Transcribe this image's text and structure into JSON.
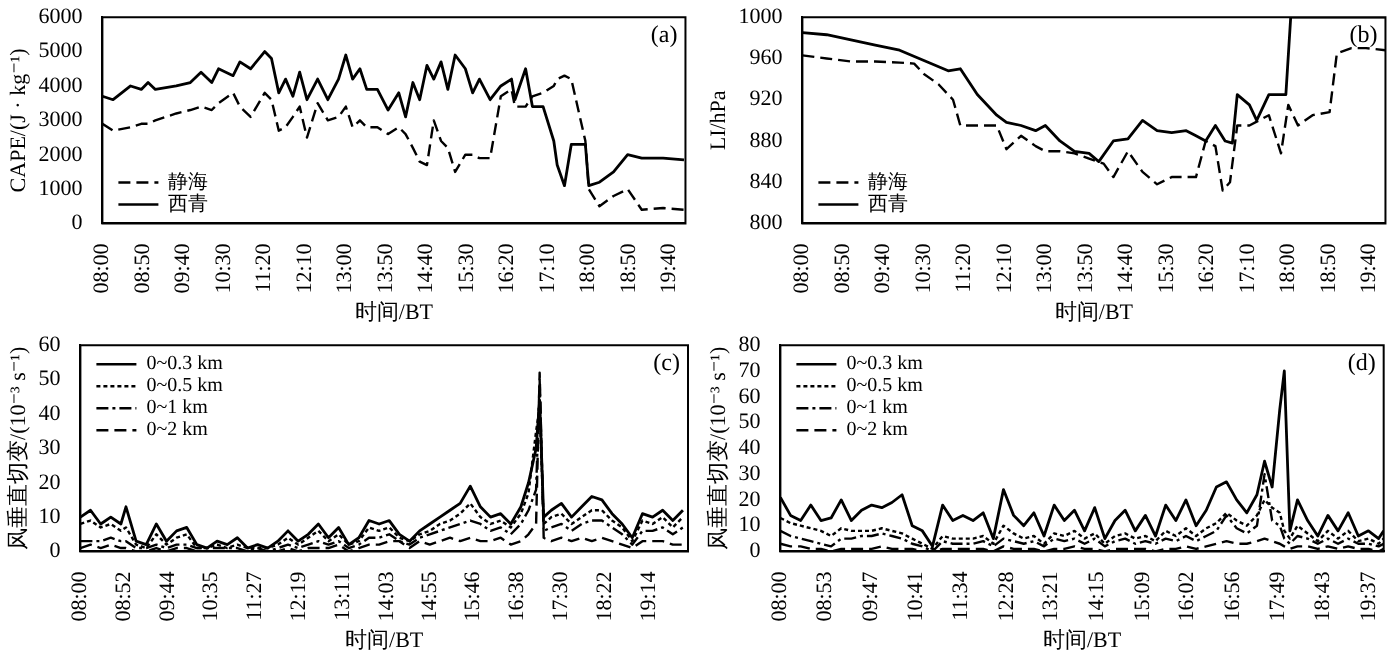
{
  "chart_data": [
    {
      "type": "line",
      "xlabel": "时间/BT",
      "ylabel": "CAPE/(J · kg⁻¹)",
      "annotations": [
        "(a)"
      ],
      "legend": "bottom left",
      "xlim": [
        8,
        20
      ],
      "ylim": [
        0,
        6000
      ],
      "yticks": [
        0,
        1000,
        2000,
        3000,
        4000,
        5000,
        6000
      ],
      "xticks": [
        {
          "value": 8,
          "label": "08:00"
        },
        {
          "value": 8.8333,
          "label": "08:50"
        },
        {
          "value": 9.6667,
          "label": "09:40"
        },
        {
          "value": 10.5,
          "label": "10:30"
        },
        {
          "value": 11.3333,
          "label": "11:20"
        },
        {
          "value": 12.1667,
          "label": "12:10"
        },
        {
          "value": 13,
          "label": "13:00"
        },
        {
          "value": 13.8333,
          "label": "13:50"
        },
        {
          "value": 14.6667,
          "label": "14:40"
        },
        {
          "value": 15.5,
          "label": "15:30"
        },
        {
          "value": 16.3333,
          "label": "16:20"
        },
        {
          "value": 17.1667,
          "label": "17:10"
        },
        {
          "value": 18,
          "label": "18:00"
        },
        {
          "value": 18.8333,
          "label": "18:50"
        },
        {
          "value": 19.6667,
          "label": "19:40"
        }
      ],
      "x": [
        8.0,
        8.22,
        8.58,
        8.8,
        8.94,
        9.09,
        9.52,
        9.81,
        10.03,
        10.25,
        10.39,
        10.69,
        10.83,
        11.05,
        11.34,
        11.48,
        11.63,
        11.77,
        11.92,
        12.06,
        12.21,
        12.43,
        12.64,
        12.86,
        13.01,
        13.15,
        13.3,
        13.44,
        13.66,
        13.88,
        14.1,
        14.24,
        14.39,
        14.53,
        14.68,
        14.82,
        14.97,
        15.11,
        15.26,
        15.47,
        15.62,
        15.76,
        15.98,
        16.2,
        16.42,
        16.49,
        16.71,
        16.85,
        17.07,
        17.29,
        17.36,
        17.51,
        17.65,
        17.94,
        18.01,
        18.23,
        18.52,
        18.81,
        19.1,
        19.54,
        19.97
      ],
      "series": [
        {
          "name": "静海",
          "color": "#000000",
          "line_style": "dashed",
          "values": [
            2900,
            2700,
            2800,
            2900,
            2900,
            3000,
            3200,
            3300,
            3400,
            3300,
            3500,
            3800,
            3400,
            3100,
            3800,
            3600,
            2700,
            2800,
            3100,
            3400,
            2500,
            3500,
            3000,
            3100,
            3400,
            2800,
            3000,
            2800,
            2800,
            2600,
            2800,
            2600,
            2200,
            1800,
            1700,
            3000,
            2400,
            2200,
            1500,
            2000,
            2000,
            1900,
            1900,
            3700,
            3900,
            3400,
            3400,
            3700,
            3800,
            4000,
            4200,
            4300,
            4200,
            2400,
            1000,
            500,
            800,
            1000,
            400,
            450,
            400
          ]
        },
        {
          "name": "西青",
          "color": "#000000",
          "line_style": "solid",
          "values": [
            3700,
            3600,
            4000,
            3900,
            4100,
            3900,
            4000,
            4100,
            4400,
            4100,
            4500,
            4300,
            4700,
            4500,
            5000,
            4800,
            3800,
            4200,
            3700,
            4400,
            3600,
            4200,
            3600,
            4200,
            4900,
            4200,
            4500,
            3900,
            3900,
            3300,
            3800,
            3100,
            4100,
            3600,
            4600,
            4200,
            4700,
            3900,
            4900,
            4500,
            3800,
            4200,
            3600,
            4000,
            4200,
            3600,
            4500,
            3400,
            3400,
            2400,
            1700,
            1100,
            2300,
            2300,
            1100,
            1200,
            1500,
            2000,
            1900,
            1900,
            1850
          ]
        }
      ]
    },
    {
      "type": "line",
      "xlabel": "时间/BT",
      "ylabel": "LI/hPa",
      "annotations": [
        "(b)"
      ],
      "legend": "bottom left",
      "xlim": [
        8,
        20
      ],
      "ylim": [
        800,
        1000
      ],
      "yticks": [
        800,
        840,
        880,
        920,
        960,
        1000
      ],
      "xticks": [
        {
          "value": 8,
          "label": "08:00"
        },
        {
          "value": 8.8333,
          "label": "08:50"
        },
        {
          "value": 9.6667,
          "label": "09:40"
        },
        {
          "value": 10.5,
          "label": "10:30"
        },
        {
          "value": 11.3333,
          "label": "11:20"
        },
        {
          "value": 12.1667,
          "label": "12:10"
        },
        {
          "value": 13,
          "label": "13:00"
        },
        {
          "value": 13.8333,
          "label": "13:50"
        },
        {
          "value": 14.6667,
          "label": "14:40"
        },
        {
          "value": 15.5,
          "label": "15:30"
        },
        {
          "value": 16.3333,
          "label": "16:20"
        },
        {
          "value": 17.1667,
          "label": "17:10"
        },
        {
          "value": 18,
          "label": "18:00"
        },
        {
          "value": 18.8333,
          "label": "18:50"
        },
        {
          "value": 19.6667,
          "label": "19:40"
        }
      ],
      "series": [
        {
          "name": "静海",
          "color": "#000000",
          "line_style": "dashed",
          "x": [
            8.0,
            8.5,
            9.0,
            9.5,
            10.0,
            10.3,
            10.5,
            10.8,
            11.1,
            11.25,
            11.6,
            12.0,
            12.2,
            12.5,
            12.8,
            13.0,
            13.3,
            13.6,
            13.9,
            14.2,
            14.4,
            14.7,
            15.0,
            15.3,
            15.6,
            15.9,
            16.1,
            16.3,
            16.5,
            16.65,
            16.8,
            16.95,
            17.2,
            17.6,
            17.85,
            18.0,
            18.2,
            18.5,
            18.85,
            19.0,
            19.3,
            19.6,
            20.0
          ],
          "values": [
            963,
            960,
            957,
            957,
            956,
            955,
            945,
            935,
            920,
            895,
            895,
            895,
            872,
            885,
            875,
            870,
            870,
            868,
            863,
            858,
            845,
            870,
            850,
            838,
            845,
            845,
            845,
            880,
            875,
            832,
            840,
            895,
            895,
            905,
            868,
            915,
            895,
            905,
            908,
            965,
            970,
            970,
            968
          ]
        },
        {
          "name": "西青",
          "color": "#000000",
          "line_style": "solid",
          "x": [
            8.0,
            8.5,
            9.0,
            9.5,
            10.0,
            10.5,
            11.0,
            11.25,
            11.6,
            12.0,
            12.2,
            12.5,
            12.8,
            13.0,
            13.3,
            13.6,
            13.9,
            14.1,
            14.4,
            14.7,
            15.0,
            15.3,
            15.6,
            15.9,
            16.1,
            16.3,
            16.5,
            16.7,
            16.85,
            16.95,
            17.2,
            17.35,
            17.6,
            17.95,
            18.05,
            18.5,
            19.0,
            19.5,
            20.0
          ],
          "values": [
            985,
            983,
            978,
            973,
            968,
            958,
            948,
            950,
            925,
            905,
            898,
            895,
            890,
            895,
            880,
            870,
            868,
            860,
            880,
            882,
            900,
            890,
            888,
            890,
            885,
            880,
            895,
            880,
            878,
            925,
            915,
            900,
            925,
            925,
            1000,
            1000,
            1000,
            1000,
            1000
          ]
        }
      ]
    },
    {
      "type": "line",
      "xlabel": "时间/BT",
      "ylabel": "风垂直切变/(10⁻³ s⁻¹)",
      "annotations": [
        "(c)"
      ],
      "legend": "top left",
      "xlim": [
        8,
        20
      ],
      "ylim": [
        0,
        60
      ],
      "yticks": [
        0,
        10,
        20,
        30,
        40,
        50,
        60
      ],
      "xticks": [
        {
          "value": 8,
          "label": "08:00"
        },
        {
          "value": 8.8667,
          "label": "08:52"
        },
        {
          "value": 9.7333,
          "label": "09:44"
        },
        {
          "value": 10.5833,
          "label": "10:35"
        },
        {
          "value": 11.45,
          "label": "11:27"
        },
        {
          "value": 12.3167,
          "label": "12:19"
        },
        {
          "value": 13.1833,
          "label": "13:11"
        },
        {
          "value": 14.05,
          "label": "14:03"
        },
        {
          "value": 14.9167,
          "label": "14:55"
        },
        {
          "value": 15.7667,
          "label": "15:46"
        },
        {
          "value": 16.6333,
          "label": "16:38"
        },
        {
          "value": 17.5,
          "label": "17:30"
        },
        {
          "value": 18.3667,
          "label": "18:22"
        },
        {
          "value": 19.2333,
          "label": "19:14"
        }
      ],
      "x": [
        8.0,
        8.2,
        8.4,
        8.6,
        8.8,
        8.9,
        9.1,
        9.3,
        9.5,
        9.7,
        9.9,
        10.1,
        10.3,
        10.5,
        10.7,
        10.9,
        11.1,
        11.3,
        11.5,
        11.7,
        11.9,
        12.1,
        12.3,
        12.5,
        12.7,
        12.9,
        13.1,
        13.3,
        13.5,
        13.7,
        13.9,
        14.1,
        14.3,
        14.5,
        14.7,
        14.9,
        15.1,
        15.3,
        15.5,
        15.7,
        15.9,
        16.1,
        16.3,
        16.5,
        16.7,
        16.85,
        17.0,
        17.07,
        17.15,
        17.3,
        17.5,
        17.7,
        17.9,
        18.1,
        18.3,
        18.5,
        18.7,
        18.9,
        19.1,
        19.3,
        19.5,
        19.7,
        19.9
      ],
      "series": [
        {
          "name": "0~0.3 km",
          "color": "#000000",
          "line_style": "solid",
          "values": [
            10,
            12,
            8,
            10,
            8,
            13,
            3,
            2,
            8,
            3,
            6,
            7,
            2,
            1,
            3,
            2,
            4,
            1,
            2,
            1,
            3,
            6,
            3,
            5,
            8,
            4,
            7,
            2,
            4,
            9,
            8,
            9,
            5,
            3,
            6,
            8,
            10,
            12,
            14,
            19,
            13,
            10,
            11,
            8,
            13,
            20,
            30,
            44,
            10,
            12,
            14,
            10,
            13,
            16,
            15,
            11,
            8,
            4,
            11,
            10,
            12,
            9,
            12
          ]
        },
        {
          "name": "0~0.5 km",
          "color": "#000000",
          "line_style": "dotted",
          "values": [
            8,
            9,
            7,
            8,
            6,
            7,
            2,
            1,
            5,
            2,
            4,
            5,
            1,
            1,
            2,
            1,
            2,
            1,
            1,
            1,
            2,
            4,
            2,
            4,
            6,
            3,
            5,
            2,
            3,
            7,
            6,
            7,
            4,
            3,
            5,
            6,
            8,
            9,
            11,
            14,
            10,
            8,
            9,
            7,
            11,
            17,
            35,
            42,
            8,
            10,
            11,
            8,
            10,
            12,
            12,
            9,
            7,
            3,
            9,
            8,
            10,
            7,
            10
          ]
        },
        {
          "name": "0~1 km",
          "color": "#000000",
          "line_style": "dashdot",
          "values": [
            3,
            3,
            3,
            4,
            3,
            3,
            1,
            1,
            2,
            1,
            2,
            2,
            1,
            1,
            1,
            1,
            1,
            0,
            1,
            0,
            1,
            2,
            1,
            2,
            3,
            2,
            3,
            1,
            2,
            4,
            4,
            5,
            3,
            2,
            4,
            5,
            6,
            7,
            8,
            9,
            8,
            6,
            7,
            5,
            8,
            12,
            18,
            50,
            6,
            7,
            8,
            6,
            8,
            9,
            9,
            7,
            5,
            2,
            6,
            6,
            7,
            5,
            7
          ]
        },
        {
          "name": "0~2 km",
          "color": "#000000",
          "line_style": "dashed",
          "values": [
            1,
            2,
            1,
            2,
            1,
            1,
            0,
            0,
            1,
            0,
            1,
            1,
            0,
            0,
            0,
            0,
            0,
            0,
            0,
            0,
            0,
            1,
            0,
            1,
            1,
            1,
            2,
            0,
            1,
            2,
            2,
            3,
            3,
            1,
            3,
            2,
            3,
            4,
            3,
            4,
            3,
            3,
            4,
            2,
            3,
            5,
            8,
            52,
            4,
            3,
            4,
            3,
            4,
            3,
            4,
            3,
            2,
            1,
            3,
            3,
            3,
            2,
            2
          ]
        }
      ]
    },
    {
      "type": "line",
      "xlabel": "时间/BT",
      "ylabel": "风垂直切变/(10⁻³ s⁻¹)",
      "annotations": [
        "(d)"
      ],
      "legend": "top left",
      "xlim": [
        8,
        19.9
      ],
      "ylim": [
        0,
        80
      ],
      "yticks": [
        0,
        10,
        20,
        30,
        40,
        50,
        60,
        70,
        80
      ],
      "xticks": [
        {
          "value": 8,
          "label": "08:00"
        },
        {
          "value": 8.8833,
          "label": "08:53"
        },
        {
          "value": 9.7833,
          "label": "09:47"
        },
        {
          "value": 10.6833,
          "label": "10:41"
        },
        {
          "value": 11.5667,
          "label": "11:34"
        },
        {
          "value": 12.4667,
          "label": "12:28"
        },
        {
          "value": 13.35,
          "label": "13:21"
        },
        {
          "value": 14.25,
          "label": "14:15"
        },
        {
          "value": 15.15,
          "label": "15:09"
        },
        {
          "value": 16.0333,
          "label": "16:02"
        },
        {
          "value": 16.9333,
          "label": "16:56"
        },
        {
          "value": 17.8167,
          "label": "17:49"
        },
        {
          "value": 18.7167,
          "label": "18:43"
        },
        {
          "value": 19.6167,
          "label": "19:37"
        }
      ],
      "x": [
        8.0,
        8.2,
        8.4,
        8.6,
        8.8,
        9.0,
        9.2,
        9.4,
        9.6,
        9.8,
        10.0,
        10.2,
        10.4,
        10.6,
        10.8,
        11.0,
        11.2,
        11.4,
        11.6,
        11.8,
        12.0,
        12.2,
        12.4,
        12.6,
        12.8,
        13.0,
        13.2,
        13.4,
        13.6,
        13.8,
        14.0,
        14.2,
        14.4,
        14.6,
        14.8,
        15.0,
        15.2,
        15.4,
        15.6,
        15.8,
        16.0,
        16.2,
        16.4,
        16.6,
        16.8,
        17.0,
        17.2,
        17.4,
        17.55,
        17.7,
        17.85,
        17.94,
        18.05,
        18.2,
        18.4,
        18.6,
        18.8,
        19.0,
        19.2,
        19.4,
        19.6,
        19.8,
        19.9
      ],
      "series": [
        {
          "name": "0~0.3 km",
          "color": "#000000",
          "line_style": "solid",
          "values": [
            21,
            14,
            12,
            18,
            12,
            13,
            20,
            12,
            16,
            18,
            17,
            19,
            22,
            10,
            8,
            2,
            18,
            12,
            14,
            12,
            15,
            5,
            24,
            14,
            10,
            15,
            6,
            18,
            12,
            16,
            8,
            17,
            5,
            12,
            16,
            8,
            14,
            6,
            18,
            12,
            20,
            10,
            16,
            25,
            27,
            20,
            15,
            22,
            35,
            25,
            55,
            70,
            8,
            20,
            12,
            6,
            14,
            8,
            15,
            6,
            8,
            5,
            8
          ]
        },
        {
          "name": "0~0.5 km",
          "color": "#000000",
          "line_style": "dotted",
          "values": [
            13,
            11,
            10,
            9,
            8,
            6,
            9,
            8,
            8,
            8,
            9,
            8,
            7,
            5,
            3,
            1,
            6,
            5,
            5,
            5,
            6,
            3,
            10,
            7,
            5,
            6,
            3,
            7,
            6,
            8,
            5,
            7,
            3,
            6,
            7,
            5,
            6,
            4,
            8,
            6,
            9,
            6,
            9,
            11,
            15,
            12,
            10,
            14,
            20,
            17,
            15,
            8,
            5,
            10,
            7,
            4,
            8,
            5,
            8,
            4,
            5,
            3,
            5
          ]
        },
        {
          "name": "0~1 km",
          "color": "#000000",
          "line_style": "dashdot",
          "values": [
            8,
            6,
            5,
            4,
            3,
            2,
            5,
            5,
            6,
            6,
            7,
            6,
            5,
            3,
            2,
            0,
            4,
            3,
            3,
            3,
            4,
            2,
            5,
            4,
            3,
            4,
            2,
            5,
            4,
            5,
            3,
            5,
            2,
            4,
            5,
            3,
            4,
            3,
            5,
            4,
            6,
            4,
            6,
            8,
            14,
            9,
            7,
            10,
            30,
            12,
            10,
            5,
            3,
            6,
            5,
            3,
            5,
            3,
            5,
            3,
            3,
            2,
            3
          ]
        },
        {
          "name": "0~2 km",
          "color": "#000000",
          "line_style": "dashed",
          "values": [
            3,
            2,
            2,
            1,
            1,
            0,
            1,
            1,
            1,
            1,
            2,
            1,
            1,
            1,
            0,
            0,
            1,
            1,
            1,
            1,
            1,
            0,
            2,
            1,
            1,
            1,
            0,
            1,
            1,
            2,
            1,
            1,
            0,
            1,
            1,
            1,
            1,
            0,
            1,
            1,
            2,
            1,
            2,
            3,
            4,
            3,
            3,
            4,
            5,
            4,
            3,
            2,
            1,
            2,
            2,
            1,
            2,
            1,
            2,
            1,
            1,
            0,
            1
          ]
        }
      ]
    }
  ]
}
